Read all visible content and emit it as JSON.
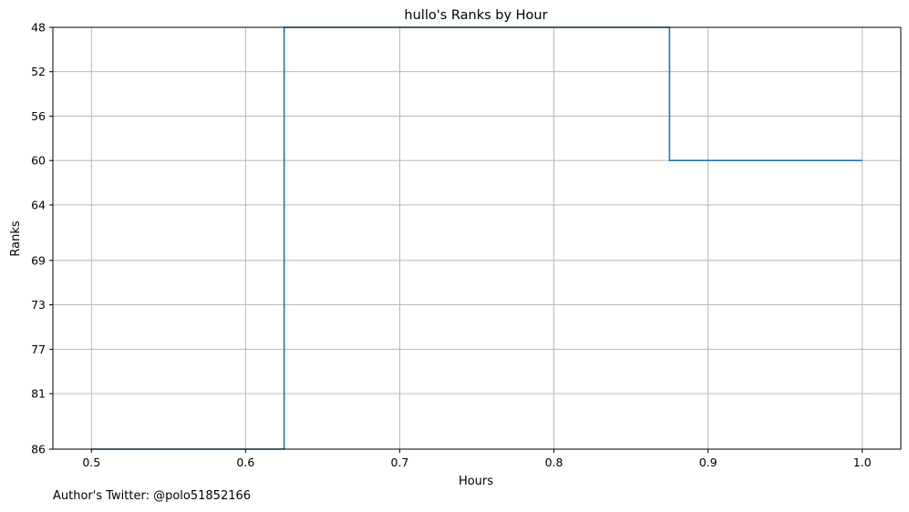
{
  "chart_data": {
    "type": "line",
    "style": "step",
    "title": "hullo's Ranks by Hour",
    "xlabel": "Hours",
    "ylabel": "Ranks",
    "x_ticks": [
      0.5,
      0.6,
      0.7,
      0.8,
      0.9,
      1.0
    ],
    "x_tick_labels": [
      "0.5",
      "0.6",
      "0.7",
      "0.8",
      "0.9",
      "1.0"
    ],
    "y_ticks": [
      48,
      52,
      56,
      60,
      64,
      69,
      73,
      77,
      81,
      86
    ],
    "y_tick_labels": [
      "48",
      "52",
      "56",
      "60",
      "64",
      "69",
      "73",
      "77",
      "81",
      "86"
    ],
    "y_inverted": true,
    "xlim": [
      0.475,
      1.025
    ],
    "ylim": [
      86,
      48
    ],
    "grid": true,
    "series": [
      {
        "x": [
          0.5,
          0.625,
          0.625,
          0.875,
          0.875,
          1.0
        ],
        "y": [
          86,
          86,
          48,
          48,
          60,
          60
        ],
        "color": "#1f77b4"
      }
    ]
  },
  "footer": {
    "credit": "Author's Twitter: @polo51852166"
  }
}
